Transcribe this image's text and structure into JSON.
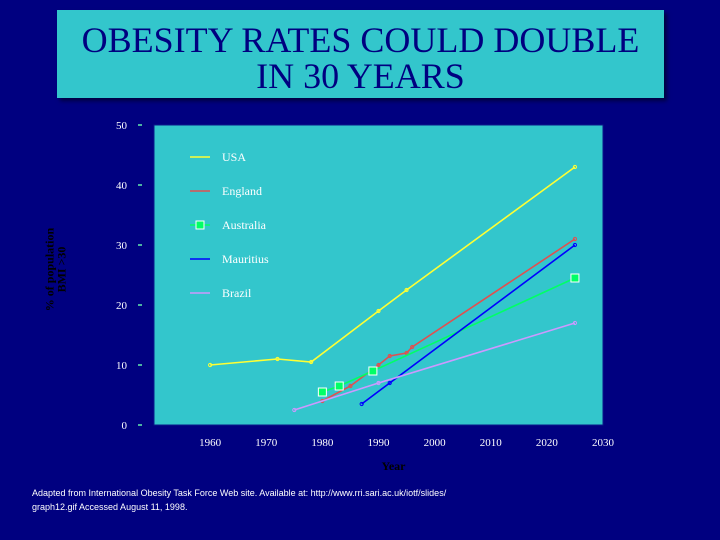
{
  "title_lines": [
    "OBESITY RATES COULD DOUBLE",
    "IN 30 YEARS"
  ],
  "source_lines": [
    "Adapted from International Obesity Task Force Web site. Available at: http://www.rri.sari.ac.uk/iotf/slides/",
    "graph12.gif Accessed August 11, 1998."
  ],
  "colors": {
    "background": "#000080",
    "title_box": "#33c6cc",
    "title_text": "#000080",
    "plot_area": "#33c6cc"
  },
  "chart_data": {
    "type": "line",
    "xlabel": "Year",
    "ylabel_lines": [
      "% of population",
      "BMI >30"
    ],
    "xlim": [
      1950,
      2030
    ],
    "ylim": [
      0,
      50
    ],
    "xticks": [
      1960,
      1970,
      1980,
      1990,
      2000,
      2010,
      2020,
      2030
    ],
    "yticks": [
      0,
      10,
      20,
      30,
      40,
      50
    ],
    "grid": false,
    "legend_position": "top-left",
    "series": [
      {
        "name": "USA",
        "color": "#ffff33",
        "x": [
          1960,
          1972,
          1978,
          1990,
          1995,
          2025
        ],
        "y": [
          10,
          11,
          10.5,
          19,
          22.5,
          43
        ]
      },
      {
        "name": "England",
        "color": "#e05050",
        "x": [
          1980,
          1985,
          1990,
          1992,
          1995,
          1996,
          2025
        ],
        "y": [
          4,
          6.5,
          10,
          11.5,
          12,
          13,
          31
        ]
      },
      {
        "name": "Australia",
        "color": "#00ff66",
        "x": [
          1980,
          1983,
          1989,
          2025
        ],
        "y": [
          5.5,
          6.5,
          9,
          24.5
        ]
      },
      {
        "name": "Mauritius",
        "color": "#0000ff",
        "x": [
          1987,
          1992,
          2025
        ],
        "y": [
          3.5,
          7,
          30
        ]
      },
      {
        "name": "Brazil",
        "color": "#cc99ff",
        "x": [
          1975,
          1990,
          2025
        ],
        "y": [
          2.5,
          7,
          17
        ]
      }
    ]
  }
}
